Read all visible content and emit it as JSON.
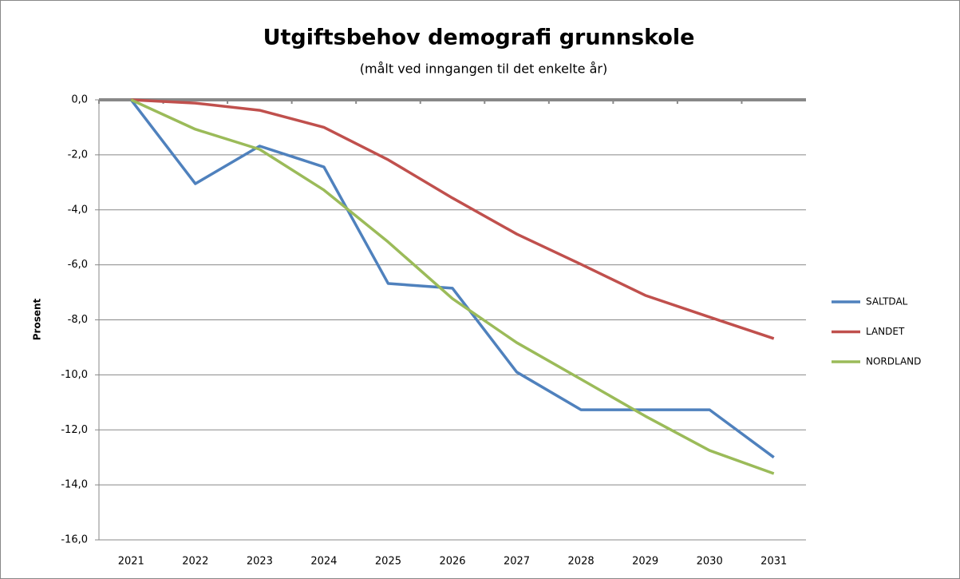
{
  "chart_data": {
    "type": "line",
    "title": "Utgiftsbehov demografi grunnskole",
    "subtitle": "(målt ved inngangen til det enkelte år)",
    "y_label": "Prosent",
    "categories": [
      "2021",
      "2022",
      "2023",
      "2024",
      "2025",
      "2026",
      "2027",
      "2028",
      "2029",
      "2030",
      "2031"
    ],
    "series": [
      {
        "name": "SALTDAL",
        "color": "#4f81bd",
        "values": [
          0,
          -3.05,
          -1.68,
          -2.44,
          -6.68,
          -6.85,
          -9.9,
          -11.27,
          -11.27,
          -11.27,
          -13.0
        ]
      },
      {
        "name": "LANDET",
        "color": "#c0504d",
        "values": [
          0,
          -0.12,
          -0.38,
          -1.0,
          -2.18,
          -3.57,
          -4.88,
          -5.98,
          -7.11,
          -7.9,
          -8.68
        ]
      },
      {
        "name": "NORDLAND",
        "color": "#9bbb59",
        "values": [
          0,
          -1.07,
          -1.8,
          -3.28,
          -5.17,
          -7.23,
          -8.83,
          -10.16,
          -11.5,
          -12.75,
          -13.59
        ]
      }
    ],
    "ylim": [
      -16,
      0
    ],
    "yticks": [
      {
        "value": 0,
        "label": "0,0"
      },
      {
        "value": -2,
        "label": "-2,0"
      },
      {
        "value": -4,
        "label": "-4,0"
      },
      {
        "value": -6,
        "label": "-6,0"
      },
      {
        "value": -8,
        "label": "-8,0"
      },
      {
        "value": -10,
        "label": "-10,0"
      },
      {
        "value": -12,
        "label": "-12,0"
      },
      {
        "value": -14,
        "label": "-14,0"
      },
      {
        "value": -16,
        "label": "-16,0"
      }
    ],
    "grid": true,
    "legend": "right"
  }
}
